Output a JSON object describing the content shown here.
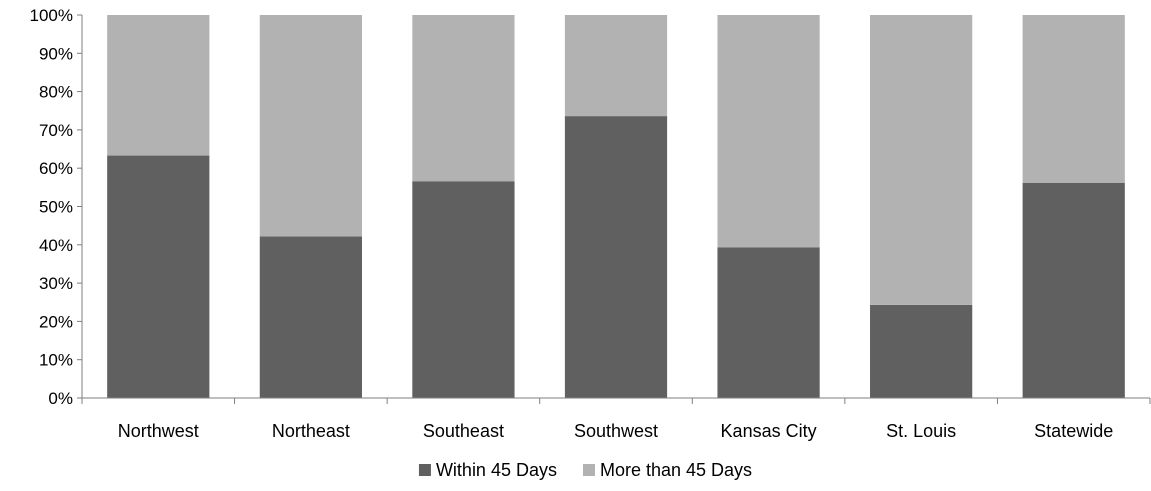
{
  "chart_data": {
    "type": "bar",
    "stacked": true,
    "percent_stacked": true,
    "categories": [
      "Northwest",
      "Northeast",
      "Southeast",
      "Southwest",
      "Kansas City",
      "St. Louis",
      "Statewide"
    ],
    "series": [
      {
        "name": "Within 45 Days",
        "color": "#606060",
        "values": [
          63.3,
          42.2,
          56.6,
          73.6,
          39.3,
          24.3,
          56.2
        ]
      },
      {
        "name": "More than 45 Days",
        "color": "#b2b2b2",
        "values": [
          36.7,
          57.8,
          43.4,
          26.4,
          60.7,
          75.7,
          43.8
        ]
      }
    ],
    "ylim": [
      0,
      100
    ],
    "yticks": [
      "0%",
      "10%",
      "20%",
      "30%",
      "40%",
      "50%",
      "60%",
      "70%",
      "80%",
      "90%",
      "100%"
    ],
    "grid": false,
    "legend_position": "bottom"
  }
}
